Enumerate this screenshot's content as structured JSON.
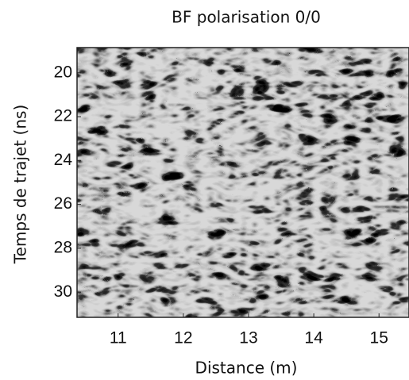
{
  "chart_data": {
    "type": "image",
    "title": "BF polarisation 0/0",
    "x_label": "Distance (m)",
    "y_label": "Temps de trajet (ns)",
    "xlim": [
      10.37,
      15.46
    ],
    "xticks": [
      11,
      12,
      13,
      14,
      15
    ],
    "ylim": [
      18.85,
      31.15
    ],
    "yticks": [
      20,
      22,
      24,
      26,
      28,
      30
    ],
    "y_inverted": true,
    "colormap": "gray"
  }
}
